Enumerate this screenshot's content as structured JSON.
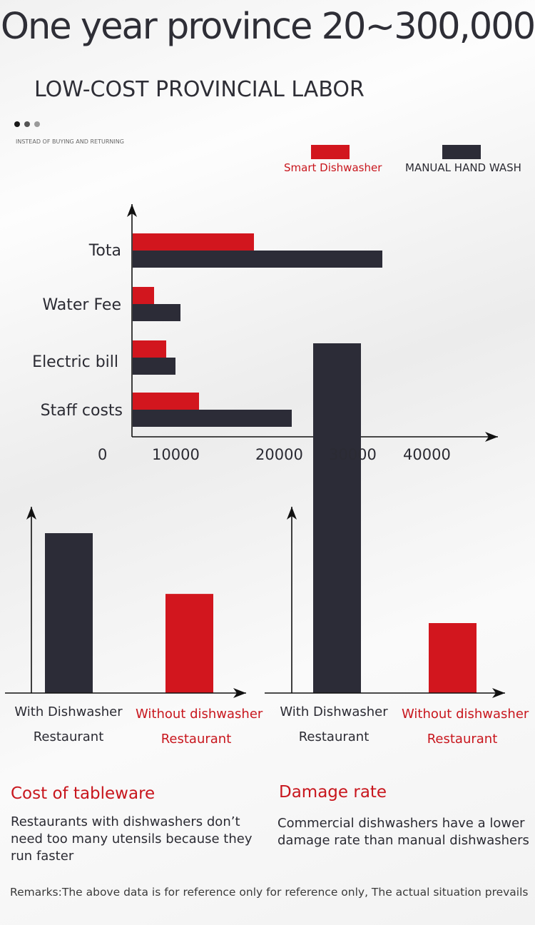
{
  "header": {
    "headline": "One year province 20~300,000",
    "subheadline": "LOW-COST PROVINCIAL LABOR",
    "caption": "INSTEAD OF BUYING AND RETURNING"
  },
  "colors": {
    "red": "#d2161e",
    "dark": "#2c2c37",
    "axis": "#111111",
    "dots": [
      "#1a1a1a",
      "#555555",
      "#9a9a9a"
    ]
  },
  "chart_data": [
    {
      "type": "bar",
      "orientation": "horizontal",
      "categories": [
        "Tota",
        "Water Fee",
        "Electric bill",
        "Staff costs"
      ],
      "series": [
        {
          "name": "Smart Dishwasher",
          "color": "#d2161e",
          "values": [
            17000,
            3000,
            4700,
            9300
          ]
        },
        {
          "name": "MANUAL HAND WASH",
          "color": "#2c2c37",
          "values": [
            35000,
            6700,
            6000,
            22300
          ]
        }
      ],
      "x_tick_labels": [
        "0",
        "10000",
        "20000",
        "30000",
        "40000"
      ],
      "legend": "top-right"
    },
    {
      "type": "bar",
      "title": "Cost of tableware",
      "description": "Restaurants with dishwashers don’t need too many utensils because they run faster",
      "categories": [
        {
          "line1": "With Dishwasher",
          "line2": "Restaurant",
          "color": "#2c2c37"
        },
        {
          "line1": "Without dishwasher",
          "line2": "Restaurant",
          "color": "#d2161e"
        }
      ],
      "values": [
        100,
        62
      ],
      "ylim": [
        0,
        100
      ]
    },
    {
      "type": "bar",
      "title": "Damage rate",
      "description": "Commercial dishwashers have a lower damage rate than manual dishwashers",
      "categories": [
        {
          "line1": "With Dishwasher",
          "line2": "Restaurant",
          "color": "#2c2c37"
        },
        {
          "line1": "Without dishwasher",
          "line2": "Restaurant",
          "color": "#d2161e"
        }
      ],
      "values": [
        100,
        20
      ],
      "ylim": [
        0,
        100
      ]
    }
  ],
  "footer": {
    "remarks": "Remarks:The above data is for reference only for reference only, The actual situation prevails"
  }
}
